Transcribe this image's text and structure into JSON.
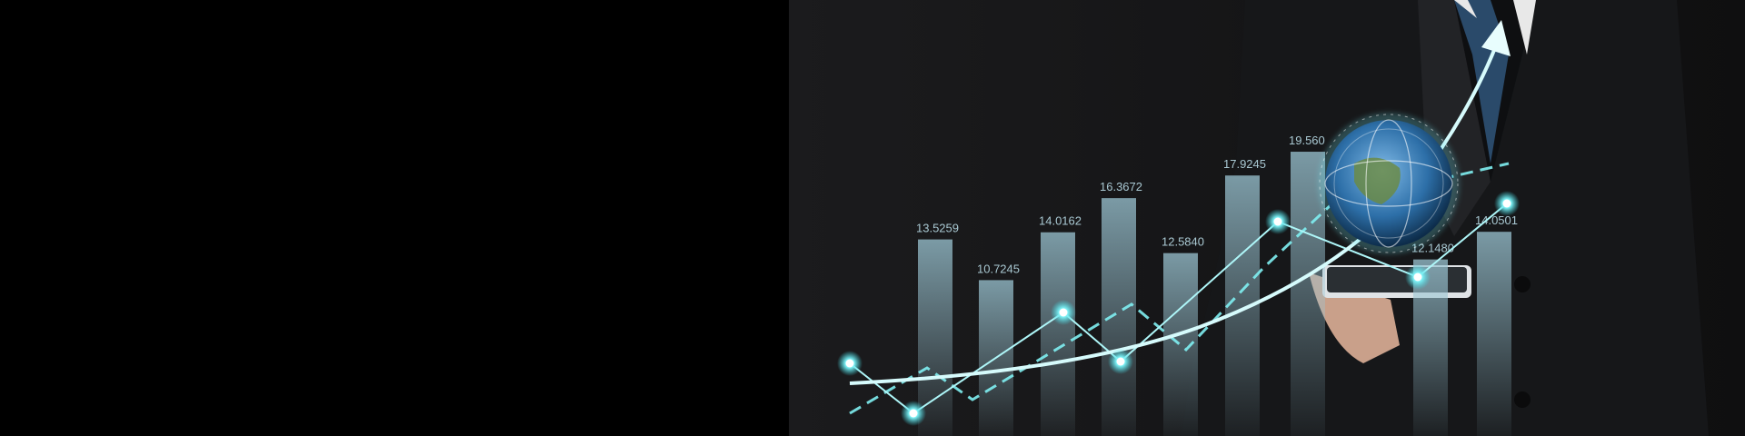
{
  "bar_labels": [
    "13.5259",
    "10.7245",
    "14.0162",
    "16.3672",
    "12.5840",
    "17.9245",
    "19.560",
    "12.1480",
    "14.0501"
  ],
  "bar_values": [
    13.5259,
    10.7245,
    14.0162,
    16.3672,
    12.584,
    17.9245,
    19.56,
    12.148,
    14.0501
  ],
  "colors": {
    "glow": "#5ee6ee",
    "bar": "#8fb6c6",
    "suit": "#161719"
  }
}
